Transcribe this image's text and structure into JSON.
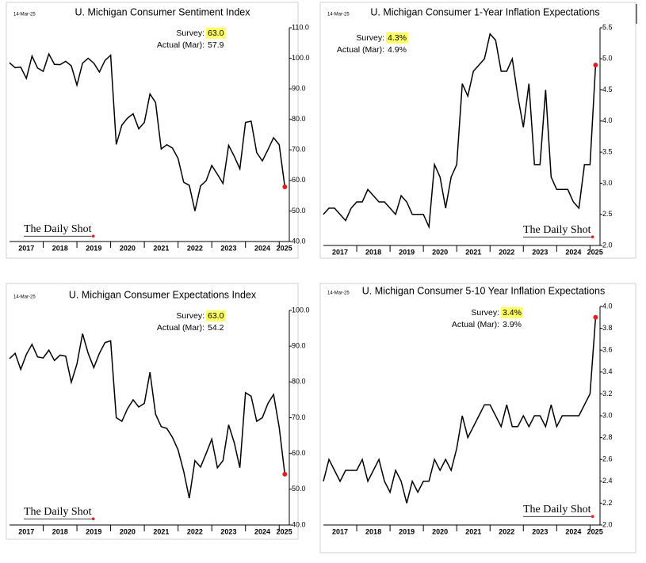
{
  "chart_data": [
    {
      "type": "line",
      "date": "14-Mar-25",
      "title": "U. Michigan Consumer Sentiment Index",
      "annotations": {
        "survey_label": "Survey:",
        "survey_value": "63.0",
        "actual_label": "Actual (Mar):",
        "actual_value": "57.9"
      },
      "source": "The Daily Shot",
      "color": "#000000",
      "last_point_color": "#e02020",
      "x": [
        2017,
        2017.167,
        2017.333,
        2017.5,
        2017.667,
        2017.833,
        2018,
        2018.167,
        2018.333,
        2018.5,
        2018.667,
        2018.833,
        2019,
        2019.167,
        2019.333,
        2019.5,
        2019.667,
        2019.833,
        2020,
        2020.167,
        2020.333,
        2020.5,
        2020.667,
        2020.833,
        2021,
        2021.167,
        2021.333,
        2021.5,
        2021.667,
        2021.833,
        2022,
        2022.167,
        2022.333,
        2022.5,
        2022.667,
        2022.833,
        2023,
        2023.167,
        2023.333,
        2023.5,
        2023.667,
        2023.833,
        2024,
        2024.167,
        2024.333,
        2024.5,
        2024.667,
        2024.833,
        2025,
        2025.167
      ],
      "values": [
        98.5,
        96.9,
        97.1,
        93.4,
        100.7,
        96.8,
        95.7,
        101.4,
        98.0,
        97.9,
        99.0,
        97.5,
        91.2,
        98.4,
        100.0,
        98.4,
        95.5,
        99.3,
        101.0,
        71.8,
        78.1,
        80.4,
        81.8,
        76.9,
        79.0,
        88.3,
        85.5,
        70.3,
        71.7,
        70.6,
        67.2,
        59.4,
        58.4,
        50.0,
        58.2,
        59.9,
        64.9,
        62.0,
        59.0,
        71.5,
        67.9,
        63.8,
        79.0,
        79.4,
        69.1,
        66.4,
        70.1,
        74.0,
        71.7,
        57.9
      ],
      "xlim": [
        2017,
        2025.3
      ],
      "xticks": [
        {
          "value": 2017.5,
          "label": "2017"
        },
        {
          "value": 2018.5,
          "label": "2018"
        },
        {
          "value": 2019.5,
          "label": "2019"
        },
        {
          "value": 2020.5,
          "label": "2020"
        },
        {
          "value": 2021.5,
          "label": "2021"
        },
        {
          "value": 2022.5,
          "label": "2022"
        },
        {
          "value": 2023.5,
          "label": "2023"
        },
        {
          "value": 2024.5,
          "label": "2024"
        },
        {
          "value": 2025.15,
          "label": "2025"
        }
      ],
      "ylim": [
        40,
        110
      ],
      "yticks": [
        {
          "value": 40,
          "label": "40.0"
        },
        {
          "value": 50,
          "label": "50.0"
        },
        {
          "value": 60,
          "label": "60.0"
        },
        {
          "value": 70,
          "label": "70.0"
        },
        {
          "value": 80,
          "label": "80.0"
        },
        {
          "value": 90,
          "label": "90.0"
        },
        {
          "value": 100,
          "label": "100.0"
        },
        {
          "value": 110,
          "label": "110.0"
        }
      ]
    },
    {
      "type": "line",
      "date": "14-Mar-25",
      "title": "U. Michigan Consumer 1-Year Inflation Expectations",
      "annotations": {
        "survey_label": "Survey:",
        "survey_value": "4.3%",
        "actual_label": "Actual (Mar):",
        "actual_value": "4.9%"
      },
      "source": "The Daily Shot",
      "color": "#000000",
      "last_point_color": "#e02020",
      "x": [
        2017,
        2017.167,
        2017.333,
        2017.5,
        2017.667,
        2017.833,
        2018,
        2018.167,
        2018.333,
        2018.5,
        2018.667,
        2018.833,
        2019,
        2019.167,
        2019.333,
        2019.5,
        2019.667,
        2019.833,
        2020,
        2020.167,
        2020.333,
        2020.5,
        2020.667,
        2020.833,
        2021,
        2021.167,
        2021.333,
        2021.5,
        2021.667,
        2021.833,
        2022,
        2022.167,
        2022.333,
        2022.5,
        2022.667,
        2022.833,
        2023,
        2023.167,
        2023.333,
        2023.5,
        2023.667,
        2023.833,
        2024,
        2024.167,
        2024.333,
        2024.5,
        2024.667,
        2024.833,
        2025,
        2025.167
      ],
      "values": [
        2.5,
        2.6,
        2.6,
        2.5,
        2.4,
        2.6,
        2.7,
        2.7,
        2.9,
        2.8,
        2.7,
        2.7,
        2.6,
        2.5,
        2.8,
        2.7,
        2.5,
        2.5,
        2.5,
        2.3,
        3.3,
        3.1,
        2.6,
        3.1,
        3.3,
        4.6,
        4.4,
        4.8,
        4.9,
        5.0,
        5.4,
        5.3,
        4.8,
        4.8,
        5.0,
        4.4,
        3.9,
        4.6,
        3.3,
        3.3,
        4.5,
        3.1,
        2.9,
        2.9,
        2.9,
        2.7,
        2.6,
        3.3,
        3.3,
        4.9
      ],
      "xlim": [
        2017,
        2025.3
      ],
      "xticks": [
        {
          "value": 2017.5,
          "label": "2017"
        },
        {
          "value": 2018.5,
          "label": "2018"
        },
        {
          "value": 2019.5,
          "label": "2019"
        },
        {
          "value": 2020.5,
          "label": "2020"
        },
        {
          "value": 2021.5,
          "label": "2021"
        },
        {
          "value": 2022.5,
          "label": "2022"
        },
        {
          "value": 2023.5,
          "label": "2023"
        },
        {
          "value": 2024.5,
          "label": "2024"
        },
        {
          "value": 2025.15,
          "label": "2025"
        }
      ],
      "ylim": [
        2.0,
        5.5
      ],
      "yticks": [
        {
          "value": 2,
          "label": "2.0"
        },
        2.5,
        {
          "value": 3,
          "label": "3.0"
        },
        3.5,
        {
          "value": 4,
          "label": "4.0"
        },
        4.5,
        {
          "value": 5,
          "label": "5.0"
        },
        5.5
      ]
    },
    {
      "type": "line",
      "date": "14-Mar-25",
      "title": "U. Michigan Consumer Expectations Index",
      "annotations": {
        "survey_label": "Survey:",
        "survey_value": "63.0",
        "actual_label": "Actual (Mar):",
        "actual_value": "54.2"
      },
      "source": "The Daily Shot",
      "color": "#000000",
      "last_point_color": "#e02020",
      "x": [
        2017,
        2017.167,
        2017.333,
        2017.5,
        2017.667,
        2017.833,
        2018,
        2018.167,
        2018.333,
        2018.5,
        2018.667,
        2018.833,
        2019,
        2019.167,
        2019.333,
        2019.5,
        2019.667,
        2019.833,
        2020,
        2020.167,
        2020.333,
        2020.5,
        2020.667,
        2020.833,
        2021,
        2021.167,
        2021.333,
        2021.5,
        2021.667,
        2021.833,
        2022,
        2022.167,
        2022.333,
        2022.5,
        2022.667,
        2022.833,
        2023,
        2023.167,
        2023.333,
        2023.5,
        2023.667,
        2023.833,
        2024,
        2024.167,
        2024.333,
        2024.5,
        2024.667,
        2024.833,
        2025,
        2025.167
      ],
      "values": [
        86.5,
        88.0,
        83.5,
        87.7,
        90.5,
        87.0,
        86.7,
        88.9,
        86.0,
        87.5,
        87.2,
        79.9,
        85.0,
        93.5,
        88.0,
        84.0,
        88.0,
        91.0,
        91.5,
        70.0,
        69.0,
        72.5,
        75.0,
        73.0,
        74.0,
        82.7,
        71.0,
        67.5,
        67.0,
        64.5,
        61.0,
        55.0,
        47.5,
        58.0,
        56.2,
        60.0,
        64.0,
        56.0,
        58.0,
        68.0,
        63.0,
        56.0,
        77.0,
        76.0,
        69.0,
        70.0,
        74.0,
        76.5,
        67.3,
        54.2
      ],
      "xlim": [
        2017,
        2025.3
      ],
      "xticks": [
        {
          "value": 2017.5,
          "label": "2017"
        },
        {
          "value": 2018.5,
          "label": "2018"
        },
        {
          "value": 2019.5,
          "label": "2019"
        },
        {
          "value": 2020.5,
          "label": "2020"
        },
        {
          "value": 2021.5,
          "label": "2021"
        },
        {
          "value": 2022.5,
          "label": "2022"
        },
        {
          "value": 2023.5,
          "label": "2023"
        },
        {
          "value": 2024.5,
          "label": "2024"
        },
        {
          "value": 2025.15,
          "label": "2025"
        }
      ],
      "ylim": [
        40,
        100
      ],
      "yticks": [
        {
          "value": 40,
          "label": "40.0"
        },
        {
          "value": 50,
          "label": "50.0"
        },
        {
          "value": 60,
          "label": "60.0"
        },
        {
          "value": 70,
          "label": "70.0"
        },
        {
          "value": 80,
          "label": "80.0"
        },
        {
          "value": 90,
          "label": "90.0"
        },
        {
          "value": 100,
          "label": "100.0"
        }
      ]
    },
    {
      "type": "line",
      "date": "14-Mar-25",
      "title": "U. Michigan Consumer 5-10 Year Inflation Expectations",
      "annotations": {
        "survey_label": "Survey:",
        "survey_value": "3.4%",
        "actual_label": "Actual (Mar):",
        "actual_value": "3.9%"
      },
      "source": "The Daily Shot",
      "color": "#000000",
      "last_point_color": "#e02020",
      "x": [
        2017,
        2017.167,
        2017.333,
        2017.5,
        2017.667,
        2017.833,
        2018,
        2018.167,
        2018.333,
        2018.5,
        2018.667,
        2018.833,
        2019,
        2019.167,
        2019.333,
        2019.5,
        2019.667,
        2019.833,
        2020,
        2020.167,
        2020.333,
        2020.5,
        2020.667,
        2020.833,
        2021,
        2021.167,
        2021.333,
        2021.5,
        2021.667,
        2021.833,
        2022,
        2022.167,
        2022.333,
        2022.5,
        2022.667,
        2022.833,
        2023,
        2023.167,
        2023.333,
        2023.5,
        2023.667,
        2023.833,
        2024,
        2024.167,
        2024.333,
        2024.5,
        2024.667,
        2024.833,
        2025,
        2025.167
      ],
      "values": [
        2.4,
        2.6,
        2.5,
        2.4,
        2.5,
        2.5,
        2.5,
        2.6,
        2.4,
        2.5,
        2.6,
        2.4,
        2.3,
        2.5,
        2.4,
        2.2,
        2.4,
        2.3,
        2.4,
        2.4,
        2.6,
        2.5,
        2.6,
        2.5,
        2.7,
        3.0,
        2.8,
        2.9,
        3.0,
        3.1,
        3.1,
        3.0,
        2.9,
        3.1,
        2.9,
        2.9,
        3.0,
        2.9,
        3.0,
        3.0,
        2.9,
        3.1,
        2.9,
        3.0,
        3.0,
        3.0,
        3.0,
        3.1,
        3.2,
        3.9
      ],
      "xlim": [
        2017,
        2025.3
      ],
      "xticks": [
        {
          "value": 2017.5,
          "label": "2017"
        },
        {
          "value": 2018.5,
          "label": "2018"
        },
        {
          "value": 2019.5,
          "label": "2019"
        },
        {
          "value": 2020.5,
          "label": "2020"
        },
        {
          "value": 2021.5,
          "label": "2021"
        },
        {
          "value": 2022.5,
          "label": "2022"
        },
        {
          "value": 2023.5,
          "label": "2023"
        },
        {
          "value": 2024.5,
          "label": "2024"
        },
        {
          "value": 2025.15,
          "label": "2025"
        }
      ],
      "ylim": [
        2.0,
        4.0
      ],
      "yticks": [
        {
          "value": 2,
          "label": "2.0"
        },
        2.2,
        2.4,
        2.6,
        2.8,
        {
          "value": 3,
          "label": "3.0"
        },
        3.2,
        3.4,
        3.6,
        3.8,
        {
          "value": 4,
          "label": "4.0"
        }
      ]
    }
  ]
}
